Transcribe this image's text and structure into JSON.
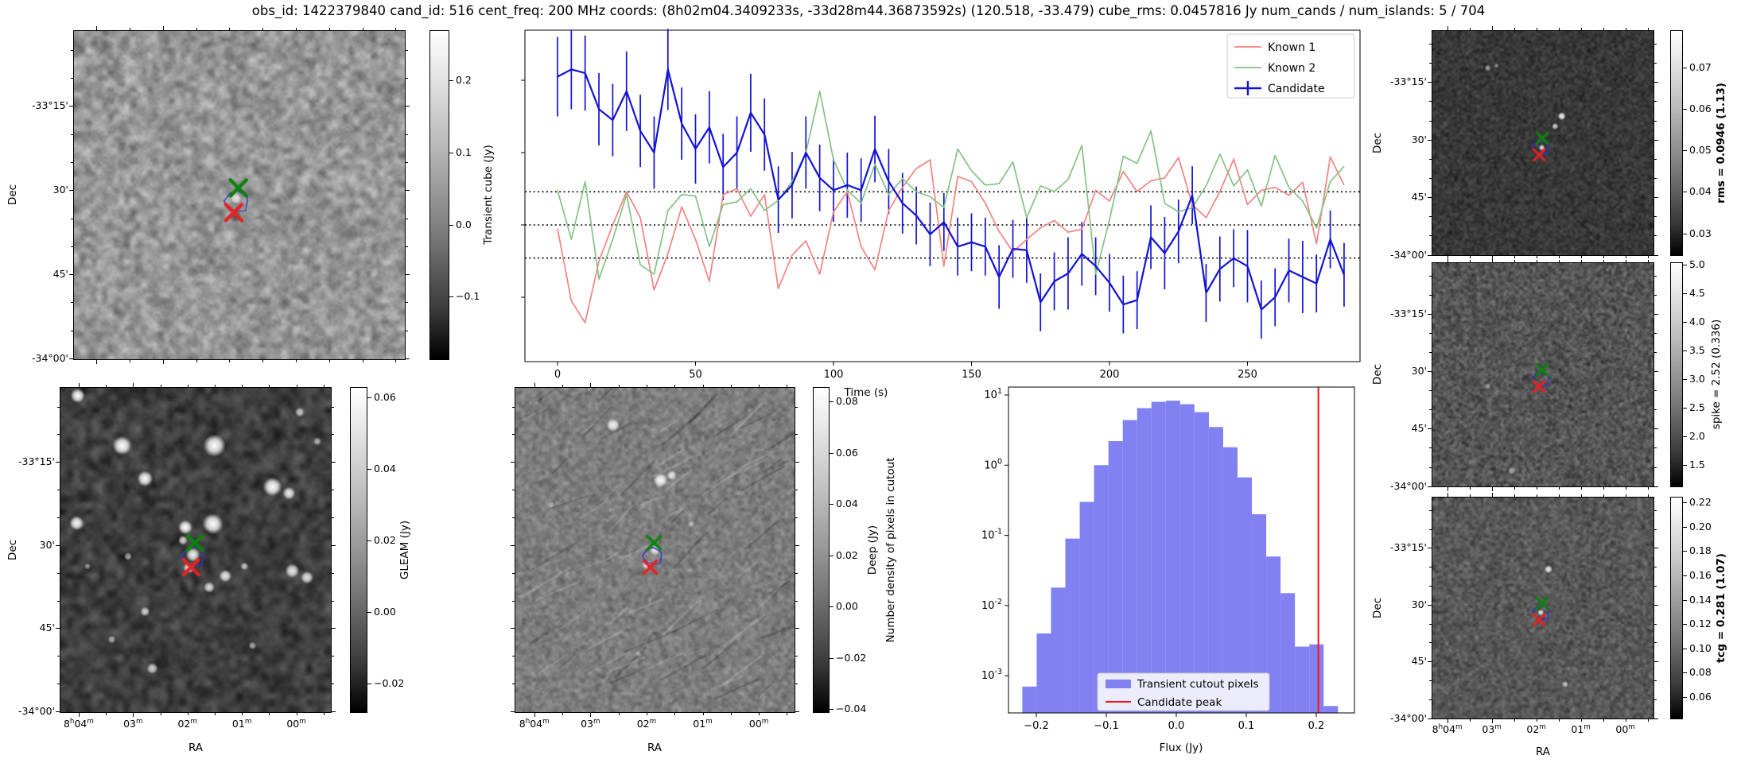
{
  "title": "obs_id: 1422379840 cand_id: 516 cent_freq: 200 MHz coords: (8h02m04.3409233s, -33d28m44.36873592s) (120.518, -33.479) cube_rms: 0.0457816 Jy num_cands / num_islands: 5 / 704",
  "figure": {
    "ylabel_dec": "Dec",
    "xlabel_ra": "RA"
  },
  "axis_ticks": {
    "dec": [
      {
        "label": "-33°15'",
        "f": 0.23
      },
      {
        "label": "30'",
        "f": 0.485
      },
      {
        "label": "45'",
        "f": 0.74
      },
      {
        "label": "-34°00'",
        "f": 0.995
      }
    ],
    "ra": [
      {
        "label": "8h04m",
        "f": 0.07
      },
      {
        "label": "03m",
        "f": 0.27
      },
      {
        "label": "02m",
        "f": 0.47
      },
      {
        "label": "01m",
        "f": 0.67
      },
      {
        "label": "00m",
        "f": 0.87
      }
    ]
  },
  "colorbars": {
    "transient": {
      "title": "Transient cube (Jy)",
      "bold": false,
      "vmin": -0.188,
      "vmax": 0.27,
      "decimals": 1,
      "ticks": [
        0.2,
        0.1,
        0.0,
        -0.1
      ]
    },
    "gleam": {
      "title": "GLEAM (Jy)",
      "bold": false,
      "vmin": -0.0282,
      "vmax": 0.0629,
      "decimals": 2,
      "ticks": [
        0.06,
        0.04,
        0.02,
        0.0,
        -0.02
      ]
    },
    "deep": {
      "title": "Deep (Jy)",
      "bold": false,
      "vmin": -0.0415,
      "vmax": 0.0856,
      "decimals": 2,
      "ticks": [
        0.08,
        0.06,
        0.04,
        0.02,
        0.0,
        -0.02,
        -0.04
      ]
    },
    "rms": {
      "title": "rms = 0.0946 (1.13)",
      "bold": true,
      "vmin": 0.0246,
      "vmax": 0.0789,
      "decimals": 2,
      "ticks": [
        0.07,
        0.06,
        0.05,
        0.04,
        0.03
      ]
    },
    "spike": {
      "title": "spike = 2.52 (0.336)",
      "bold": false,
      "vmin": 1.11,
      "vmax": 5.04,
      "decimals": 1,
      "ticks": [
        5.0,
        4.5,
        4.0,
        3.5,
        3.0,
        2.5,
        2.0,
        1.5
      ]
    },
    "tcg": {
      "title": "tcg = 0.281 (1.07)",
      "bold": true,
      "vmin": 0.0417,
      "vmax": 0.2246,
      "decimals": 2,
      "ticks": [
        0.22,
        0.2,
        0.18,
        0.16,
        0.14,
        0.12,
        0.1,
        0.08,
        0.06
      ]
    }
  },
  "markers": {
    "known_x": {
      "fx": 0.497,
      "fy": 0.478,
      "color": "#0c830c"
    },
    "island_contour": {
      "fx": 0.494,
      "fy": 0.518,
      "color": "#3333cc"
    },
    "candidate_x": {
      "fx": 0.483,
      "fy": 0.553,
      "color": "#e62222"
    }
  },
  "chart_data": [
    {
      "id": "lightcurve",
      "type": "line",
      "xlabel": "Time (s)",
      "x_start": 0,
      "x_step": 5,
      "xlim": [
        -12.4,
        290.8
      ],
      "ylim": [
        -0.189,
        0.269
      ],
      "x_ticks": [
        0,
        50,
        100,
        150,
        200,
        250
      ],
      "y_ticks_unlabeled": [
        0.2,
        0.1,
        0.0,
        -0.1
      ],
      "hlines": {
        "values": [
          0.0458,
          0.0,
          -0.0458
        ],
        "style": "dotted",
        "color": "#000000"
      },
      "legend": {
        "position": "upper right"
      },
      "series": [
        {
          "name": "Known 1",
          "color": "#f58282",
          "values": [
            -0.005,
            -0.105,
            -0.135,
            -0.05,
            0.0,
            0.046,
            0.01,
            -0.09,
            -0.04,
            0.025,
            -0.02,
            -0.078,
            0.042,
            0.05,
            0.012,
            0.042,
            -0.088,
            -0.042,
            -0.022,
            -0.068,
            0.018,
            0.046,
            -0.03,
            -0.062,
            0.02,
            0.052,
            0.078,
            0.09,
            -0.057,
            0.067,
            0.06,
            0.03,
            -0.009,
            -0.037,
            -0.02,
            -0.004,
            0.006,
            -0.01,
            -0.006,
            0.048,
            0.033,
            0.074,
            0.046,
            0.061,
            0.065,
            0.093,
            0.028,
            0.01,
            0.046,
            0.091,
            0.028,
            0.048,
            0.052,
            0.041,
            0.059,
            -0.026,
            0.094,
            0.055
          ]
        },
        {
          "name": "Known 2",
          "color": "#85c285",
          "values": [
            0.048,
            -0.02,
            0.06,
            -0.075,
            -0.02,
            0.042,
            -0.055,
            -0.068,
            0.02,
            0.042,
            0.04,
            -0.03,
            0.028,
            0.032,
            0.05,
            0.02,
            0.034,
            0.06,
            0.1,
            0.185,
            0.09,
            0.048,
            0.03,
            0.084,
            0.042,
            0.064,
            0.046,
            0.039,
            0.024,
            0.105,
            0.075,
            0.055,
            0.057,
            0.087,
            0.01,
            0.054,
            0.046,
            0.063,
            0.11,
            -0.068,
            0.007,
            0.095,
            0.085,
            0.13,
            0.03,
            0.018,
            0.024,
            0.054,
            0.098,
            0.054,
            0.076,
            0.026,
            0.096,
            0.052,
            0.033,
            -0.004,
            0.06,
            0.081
          ]
        },
        {
          "name": "Candidate",
          "color": "#1212d6",
          "values": [
            0.205,
            0.215,
            0.21,
            0.16,
            0.145,
            0.185,
            0.13,
            0.1,
            0.215,
            0.14,
            0.105,
            0.135,
            0.08,
            0.1,
            0.155,
            0.125,
            0.035,
            0.055,
            0.1,
            0.065,
            0.048,
            0.055,
            0.048,
            0.105,
            0.06,
            0.03,
            0.013,
            -0.013,
            0.004,
            -0.03,
            -0.024,
            -0.03,
            -0.072,
            -0.033,
            -0.035,
            -0.107,
            -0.078,
            -0.067,
            -0.04,
            -0.057,
            -0.08,
            -0.11,
            -0.104,
            -0.017,
            -0.039,
            -0.009,
            0.041,
            -0.094,
            -0.061,
            -0.046,
            -0.057,
            -0.117,
            -0.1,
            -0.063,
            -0.072,
            -0.081,
            -0.02,
            -0.069
          ],
          "errors": [
            0.055,
            0.055,
            0.052,
            0.05,
            0.05,
            0.055,
            0.05,
            0.05,
            0.056,
            0.05,
            0.048,
            0.05,
            0.046,
            0.05,
            0.054,
            0.05,
            0.046,
            0.046,
            0.05,
            0.046,
            0.044,
            0.045,
            0.044,
            0.046,
            0.045,
            0.042,
            0.04,
            0.044,
            0.04,
            0.04,
            0.04,
            0.04,
            0.044,
            0.04,
            0.045,
            0.04,
            0.04,
            0.05,
            0.044,
            0.04,
            0.04,
            0.04,
            0.04,
            0.044,
            0.05,
            0.044,
            0.04,
            0.04,
            0.045,
            0.04,
            0.05,
            0.04,
            0.04,
            0.044,
            0.05,
            0.04,
            0.04,
            0.044
          ]
        }
      ]
    },
    {
      "id": "flux_histogram",
      "type": "histogram",
      "xlabel": "Flux (Jy)",
      "ylabel": "Number density of pixels in cutout",
      "bar_color": "#8181f2",
      "bin_start": -0.22,
      "bin_width": 0.0205,
      "values": [
        0.0007,
        0.004,
        0.018,
        0.09,
        0.3,
        1.0,
        2.2,
        4.4,
        6.5,
        8.0,
        8.3,
        7.4,
        5.7,
        3.5,
        1.8,
        0.67,
        0.2,
        0.05,
        0.015,
        0.0026,
        0.0028,
        0.00037
      ],
      "x_ticks": [
        -0.2,
        -0.1,
        0.0,
        0.1,
        0.2
      ],
      "y_tick_exponents": [
        1,
        0,
        -1,
        -2,
        -3
      ],
      "xlim": [
        -0.2398,
        0.2545
      ],
      "ylim_log": [
        0.000295,
        12.97
      ],
      "candidate_peak": {
        "value": 0.203,
        "color": "#ff1111"
      },
      "legend": {
        "entries": [
          "Transient cutout pixels",
          "Candidate peak"
        ]
      }
    }
  ]
}
